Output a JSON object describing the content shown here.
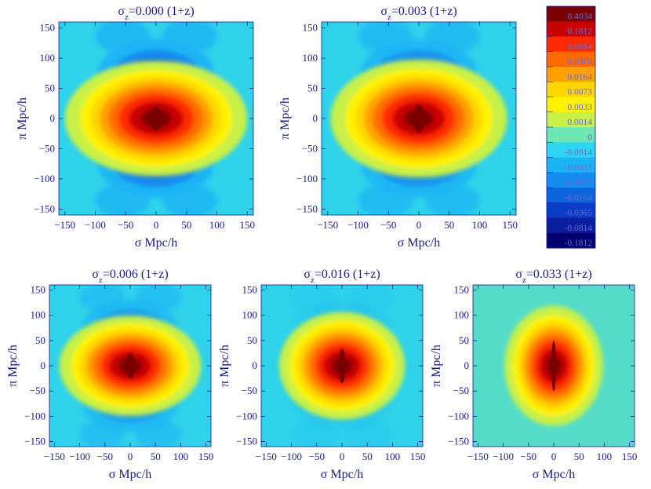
{
  "chart_data": {
    "type": "heatmap",
    "description_units": "2D correlation function xi(sigma, pi)",
    "panels": [
      {
        "title_prefix": "σ",
        "title_sub": "z",
        "title_suffix": "=0.000 (1+z)",
        "sigma_z": 0.0,
        "xlabel": "σ Mpc/h",
        "ylabel": "π Mpc/h",
        "xlim": [
          -160,
          160
        ],
        "ylim": [
          -160,
          160
        ],
        "xticks": [
          -150,
          -100,
          -50,
          0,
          50,
          100,
          150
        ],
        "yticks": [
          -150,
          -100,
          -50,
          0,
          50,
          100,
          150
        ]
      },
      {
        "title_prefix": "σ",
        "title_sub": "z",
        "title_suffix": "=0.003 (1+z)",
        "sigma_z": 0.003,
        "xlabel": "σ Mpc/h",
        "ylabel": "π Mpc/h",
        "xlim": [
          -160,
          160
        ],
        "ylim": [
          -160,
          160
        ],
        "xticks": [
          -150,
          -100,
          -50,
          0,
          50,
          100,
          150
        ],
        "yticks": [
          -150,
          -100,
          -50,
          0,
          50,
          100,
          150
        ]
      },
      {
        "title_prefix": "σ",
        "title_sub": "z",
        "title_suffix": "=0.006 (1+z)",
        "sigma_z": 0.006,
        "xlabel": "σ Mpc/h",
        "ylabel": "π Mpc/h",
        "xlim": [
          -160,
          160
        ],
        "ylim": [
          -160,
          160
        ],
        "xticks": [
          -150,
          -100,
          -50,
          0,
          50,
          100,
          150
        ],
        "yticks": [
          -150,
          -100,
          -50,
          0,
          50,
          100,
          150
        ]
      },
      {
        "title_prefix": "σ",
        "title_sub": "z",
        "title_suffix": "=0.016 (1+z)",
        "sigma_z": 0.016,
        "xlabel": "σ Mpc/h",
        "ylabel": "π Mpc/h",
        "xlim": [
          -160,
          160
        ],
        "ylim": [
          -160,
          160
        ],
        "xticks": [
          -150,
          -100,
          -50,
          0,
          50,
          100,
          150
        ],
        "yticks": [
          -150,
          -100,
          -50,
          0,
          50,
          100,
          150
        ]
      },
      {
        "title_prefix": "σ",
        "title_sub": "z",
        "title_suffix": "=0.033 (1+z)",
        "sigma_z": 0.033,
        "xlabel": "σ Mpc/h",
        "ylabel": "π Mpc/h",
        "xlim": [
          -160,
          160
        ],
        "ylim": [
          -160,
          160
        ],
        "xticks": [
          -150,
          -100,
          -50,
          0,
          50,
          100,
          150
        ],
        "yticks": [
          -150,
          -100,
          -50,
          0,
          50,
          100,
          150
        ]
      }
    ],
    "colorbar": {
      "labels": [
        "0.4034",
        "0.1812",
        "0.0814",
        "0.0365",
        "0.0164",
        "0.0073",
        "0.0033",
        "0.0014",
        "0",
        "-0.0014",
        "-0.0033",
        "-0.0073",
        "-0.0164",
        "-0.0365",
        "-0.0814",
        "-0.1812"
      ],
      "colors": [
        "#7a0000",
        "#c80000",
        "#ff2a00",
        "#ff6a00",
        "#ffa000",
        "#ffd600",
        "#fff200",
        "#c8f046",
        "#6ee6b4",
        "#2dd6f0",
        "#1ab4f5",
        "#148cf0",
        "#0a64dc",
        "#0a3cc8",
        "#0a1ea0",
        "#00006e"
      ]
    },
    "colors": {
      "text": "#1a1a8c"
    }
  }
}
